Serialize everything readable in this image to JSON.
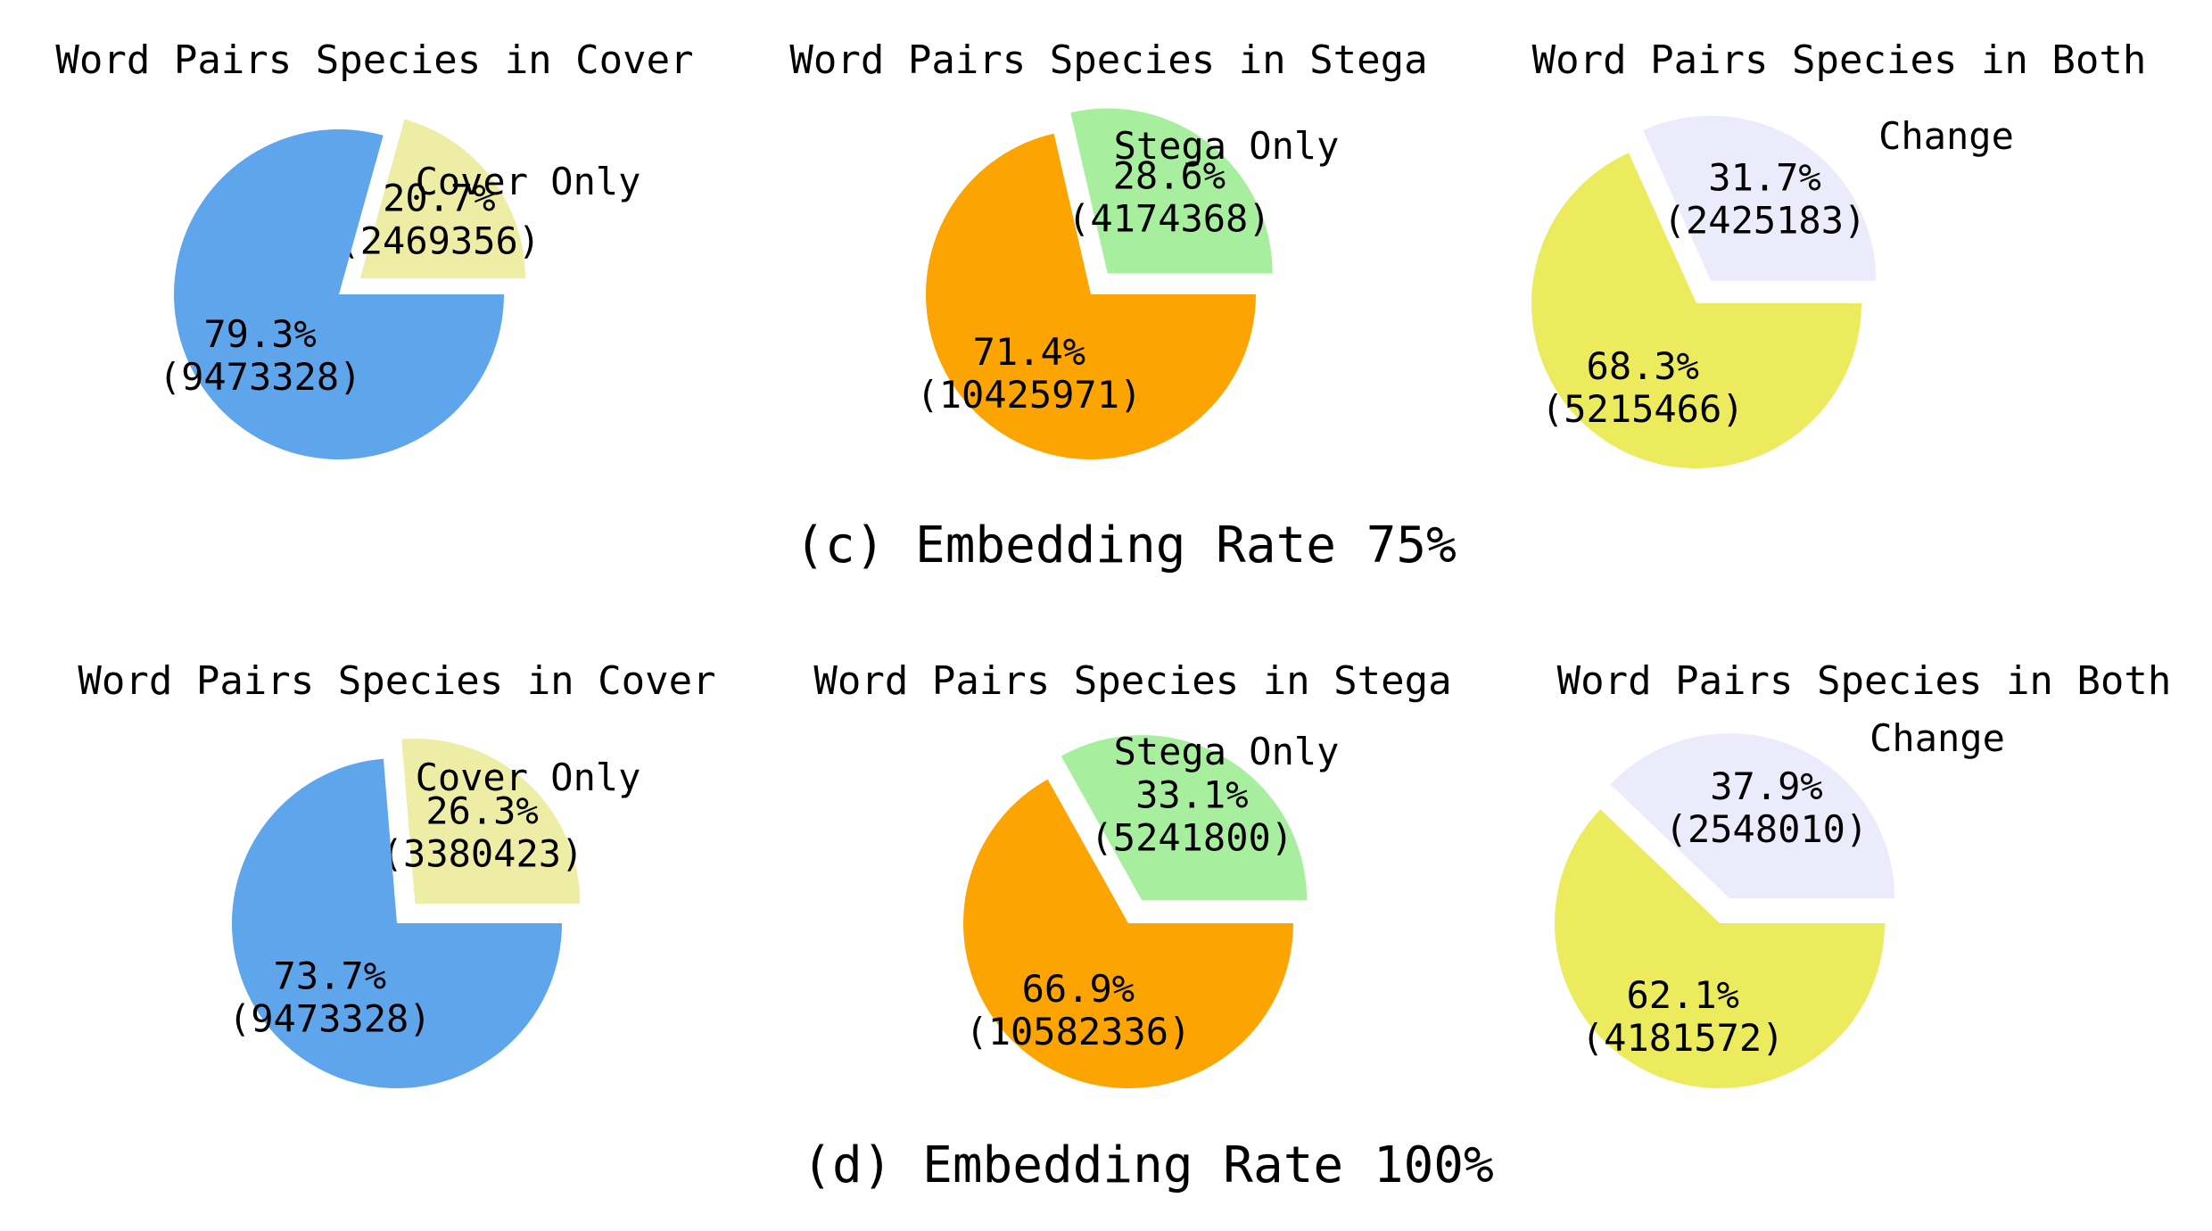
{
  "chart_data": [
    {
      "type": "pie",
      "title": "Word Pairs Species in Cover",
      "slices": [
        {
          "label": "",
          "percent": "79.3%",
          "count": "(9473328)",
          "value": 9473328,
          "color": "#5ea5ec",
          "explode": false
        },
        {
          "label": "Cover Only",
          "percent": "20.7%",
          "count": "(2469356)",
          "value": 2469356,
          "color": "#eeeda6",
          "explode": true
        }
      ]
    },
    {
      "type": "pie",
      "title": "Word Pairs Species in Stega",
      "slices": [
        {
          "label": "",
          "percent": "71.4%",
          "count": "(10425971)",
          "value": 10425971,
          "color": "#fca402",
          "explode": false
        },
        {
          "label": "Stega Only",
          "percent": "28.6%",
          "count": "(4174368)",
          "value": 4174368,
          "color": "#a7ee9e",
          "explode": true
        }
      ]
    },
    {
      "type": "pie",
      "title": "Word Pairs Species in Both",
      "slices": [
        {
          "label": "",
          "percent": "68.3%",
          "count": "(5215466)",
          "value": 5215466,
          "color": "#ebeb5d",
          "explode": false
        },
        {
          "label": "Change",
          "percent": "31.7%",
          "count": "(2425183)",
          "value": 2425183,
          "color": "#ebebfc",
          "explode": true
        }
      ]
    },
    {
      "type": "pie",
      "title": "Word Pairs Species in Cover",
      "slices": [
        {
          "label": "",
          "percent": "73.7%",
          "count": "(9473328)",
          "value": 9473328,
          "color": "#5ea5ec",
          "explode": false
        },
        {
          "label": "Cover Only",
          "percent": "26.3%",
          "count": "(3380423)",
          "value": 3380423,
          "color": "#eeeda6",
          "explode": true
        }
      ]
    },
    {
      "type": "pie",
      "title": "Word Pairs Species in Stega",
      "slices": [
        {
          "label": "",
          "percent": "66.9%",
          "count": "(10582336)",
          "value": 10582336,
          "color": "#fca402",
          "explode": false
        },
        {
          "label": "Stega Only",
          "percent": "33.1%",
          "count": "(5241800)",
          "value": 5241800,
          "color": "#a7ee9e",
          "explode": true
        }
      ]
    },
    {
      "type": "pie",
      "title": "Word Pairs Species in Both",
      "slices": [
        {
          "label": "",
          "percent": "62.1%",
          "count": "(4181572)",
          "value": 4181572,
          "color": "#ebeb5d",
          "explode": false
        },
        {
          "label": "Change",
          "percent": "37.9%",
          "count": "(2548010)",
          "value": 2548010,
          "color": "#ebebfc",
          "explode": true
        }
      ]
    }
  ],
  "captions": [
    "(c) Embedding Rate 75%",
    "(d) Embedding Rate 100%"
  ]
}
